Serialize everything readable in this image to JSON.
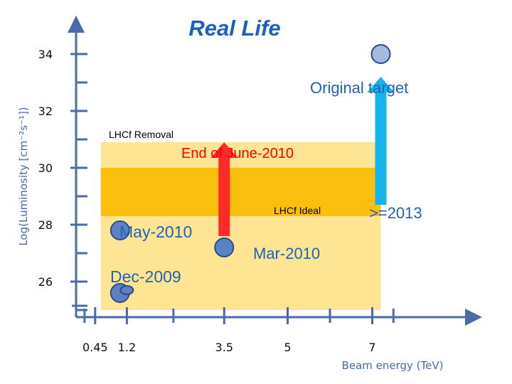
{
  "chart_data": {
    "type": "scatter",
    "title": "Real Life",
    "ylabel": "Log(Luminosity [cm⁻²s⁻¹])",
    "xlabel": "Beam energy (TeV)",
    "xlim": [
      0,
      8.2
    ],
    "ylim": [
      24.2,
      35
    ],
    "x_ticks": [
      {
        "value": 0.45,
        "label": "0.45"
      },
      {
        "value": 1.2,
        "label": "1.2"
      },
      {
        "value": 3.5,
        "label": "3.5"
      },
      {
        "value": 5,
        "label": "5"
      },
      {
        "value": 7,
        "label": "7"
      }
    ],
    "y_ticks": [
      {
        "value": 26,
        "label": "26"
      },
      {
        "value": 28,
        "label": "28"
      },
      {
        "value": 30,
        "label": "30"
      },
      {
        "value": 32,
        "label": "32"
      },
      {
        "value": 34,
        "label": "34"
      }
    ],
    "y_minor_ticks": [
      25,
      27,
      29,
      31,
      33
    ],
    "x_minor_ticks": [
      0.2,
      2.3,
      6.0,
      7.5
    ],
    "bands": [
      {
        "name": "LHCf Removal",
        "x": [
          0.45,
          7.0
        ],
        "y": [
          25.0,
          30.9
        ],
        "color": "#fde594"
      },
      {
        "name": "End of June-2010",
        "x": [
          0.45,
          7.0
        ],
        "y": [
          28.3,
          30.0
        ],
        "color": "#fbbf0f"
      }
    ],
    "points": [
      {
        "label": "Dec-2009",
        "x": 0.45,
        "y": 25.6,
        "size": "large"
      },
      {
        "label": "",
        "x": 1.2,
        "y": 25.7,
        "size": "small"
      },
      {
        "label": "May-2010",
        "x": 0.45,
        "y": 27.8,
        "size": "large"
      },
      {
        "label": "Mar-2010",
        "x": 3.5,
        "y": 27.2,
        "size": "large"
      },
      {
        "label": "Original target",
        "x": 7.0,
        "y": 34.0,
        "size": "large"
      }
    ],
    "arrows": [
      {
        "name": "LHCf Ideal",
        "x": 3.5,
        "from": 27.6,
        "to": 30.9,
        "color": "#ff2a2a"
      },
      {
        "name": ">=2013",
        "x": 7.0,
        "from": 28.7,
        "to": 33.2,
        "color": "#14b4ec"
      }
    ],
    "annotations": {
      "lhcf_removal": "LHCf Removal",
      "end_june": "End of June-2010",
      "lhcf_ideal": "LHCf Ideal",
      "year_2013": ">=2013",
      "may_2010": "May-2010",
      "mar_2010": "Mar-2010",
      "dec_2009": "Dec-2009",
      "original_target": "Original target"
    },
    "colors": {
      "axis": "#4a6aa8",
      "title": "#1b5fbf",
      "annotation": "#1f63b8",
      "point_fill": "#5a82c7",
      "point_stroke": "#2f4a86",
      "target_fill": "#a6badf"
    }
  }
}
